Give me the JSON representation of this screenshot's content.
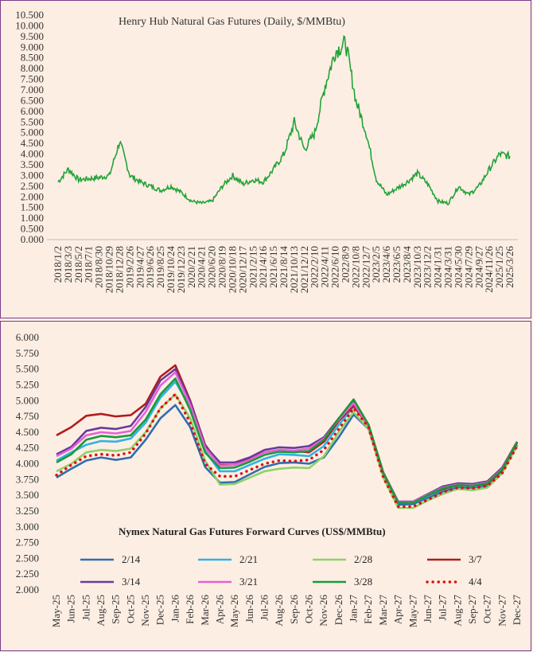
{
  "chart_data": [
    {
      "type": "line",
      "title": "Henry Hub Natural Gas Futures (Daily,  $/MMBtu)",
      "ylim": [
        0,
        10.5
      ],
      "yticks": [
        "0.000",
        "0.500",
        "1.000",
        "1.500",
        "2.000",
        "2.500",
        "3.000",
        "3.500",
        "4.000",
        "4.500",
        "5.000",
        "5.500",
        "6.000",
        "6.500",
        "7.000",
        "7.500",
        "8.000",
        "8.500",
        "9.000",
        "9.500",
        "10.000",
        "10.500"
      ],
      "categories": [
        "2018/1/2",
        "2018/3/3",
        "2018/5/2",
        "2018/7/1",
        "2018/8/30",
        "2018/10/29",
        "2018/12/28",
        "2019/2/26",
        "2019/4/27",
        "2019/6/26",
        "2019/8/25",
        "2019/10/24",
        "2019/12/23",
        "2020/2/21",
        "2020/4/21",
        "2020/6/20",
        "2020/8/19",
        "2020/10/18",
        "2020/12/17",
        "2021/2/15",
        "2021/4/16",
        "2021/6/15",
        "2021/8/14",
        "2021/10/13",
        "2021/12/12",
        "2022/2/10",
        "2022/4/11",
        "2022/6/10",
        "2022/8/9",
        "2022/10/8",
        "2022/12/7",
        "2023/2/5",
        "2023/4/6",
        "2023/6/5",
        "2023/8/4",
        "2023/10/3",
        "2023/12/2",
        "2024/1/31",
        "2024/3/31",
        "2024/5/30",
        "2024/7/29",
        "2024/9/27",
        "2024/11/26",
        "2025/1/25",
        "2025/3/26"
      ],
      "series": [
        {
          "color": "#22a339",
          "values": [
            2.7,
            3.3,
            2.8,
            2.85,
            2.9,
            3.0,
            4.6,
            3.0,
            2.7,
            2.5,
            2.3,
            2.5,
            2.2,
            1.8,
            1.7,
            1.8,
            2.5,
            3.0,
            2.6,
            2.8,
            2.7,
            3.3,
            4.0,
            5.5,
            4.2,
            5.0,
            7.2,
            8.8,
            9.2,
            6.5,
            5.0,
            2.8,
            2.1,
            2.4,
            2.7,
            3.1,
            2.6,
            1.8,
            1.7,
            2.5,
            2.1,
            2.5,
            3.3,
            4.0,
            3.9
          ]
        }
      ]
    },
    {
      "type": "line",
      "title": "Nymex  Natural Gas Futures Forward  Curves (US$/MMBtu)",
      "ylim": [
        2.0,
        6.0
      ],
      "yticks": [
        "2.000",
        "2.250",
        "2.500",
        "2.750",
        "3.000",
        "3.250",
        "3.500",
        "3.750",
        "4.000",
        "4.250",
        "4.500",
        "4.750",
        "5.000",
        "5.250",
        "5.500",
        "5.750",
        "6.000"
      ],
      "categories": [
        "May-25",
        "Jun-25",
        "Jul-25",
        "Aug-25",
        "Sep-25",
        "Oct-25",
        "Nov-25",
        "Dec-25",
        "Jan-26",
        "Feb-26",
        "Mar-26",
        "Apr-26",
        "May-26",
        "Jun-26",
        "Jul-26",
        "Aug-26",
        "Sep-26",
        "Oct-26",
        "Nov-26",
        "Dec-26",
        "Jan-27",
        "Feb-27",
        "Mar-27",
        "Apr-27",
        "May-27",
        "Jun-27",
        "Jul-27",
        "Aug-27",
        "Sep-27",
        "Oct-27",
        "Nov-27",
        "Dec-27"
      ],
      "series": [
        {
          "name": "2/14",
          "color": "#2e6fb0",
          "values": [
            3.78,
            3.92,
            4.05,
            4.1,
            4.06,
            4.1,
            4.38,
            4.72,
            4.93,
            4.58,
            3.95,
            3.7,
            3.71,
            3.83,
            3.95,
            4.01,
            4.02,
            4.0,
            4.1,
            4.42,
            4.78,
            4.55,
            3.8,
            3.35,
            3.36,
            3.46,
            3.56,
            3.62,
            3.62,
            3.65,
            3.86,
            4.3
          ]
        },
        {
          "name": "2/21",
          "color": "#2fb3e6",
          "values": [
            4.05,
            4.18,
            4.3,
            4.36,
            4.35,
            4.4,
            4.65,
            5.05,
            5.3,
            4.9,
            4.2,
            3.88,
            3.88,
            3.98,
            4.08,
            4.15,
            4.14,
            4.12,
            4.28,
            4.62,
            4.9,
            4.62,
            3.85,
            3.38,
            3.38,
            3.49,
            3.59,
            3.65,
            3.64,
            3.67,
            3.9,
            4.33
          ]
        },
        {
          "name": "2/28",
          "color": "#8fd16a",
          "values": [
            3.88,
            4.0,
            4.18,
            4.22,
            4.2,
            4.24,
            4.5,
            4.88,
            5.1,
            4.72,
            4.05,
            3.67,
            3.68,
            3.78,
            3.88,
            3.92,
            3.94,
            3.93,
            4.12,
            4.5,
            4.82,
            4.55,
            3.78,
            3.3,
            3.3,
            3.42,
            3.52,
            3.6,
            3.58,
            3.62,
            3.85,
            4.28
          ]
        },
        {
          "name": "3/7",
          "color": "#b01c1c",
          "values": [
            4.45,
            4.58,
            4.76,
            4.79,
            4.75,
            4.77,
            4.95,
            5.38,
            5.56,
            5.0,
            4.3,
            3.98,
            3.98,
            4.08,
            4.18,
            4.22,
            4.2,
            4.18,
            4.35,
            4.68,
            4.92,
            4.6,
            3.85,
            3.38,
            3.39,
            3.5,
            3.6,
            3.66,
            3.65,
            3.68,
            3.9,
            4.33
          ]
        },
        {
          "name": "3/14",
          "color": "#6a3a9c",
          "values": [
            4.15,
            4.27,
            4.52,
            4.57,
            4.55,
            4.6,
            4.9,
            5.32,
            5.5,
            4.98,
            4.28,
            4.02,
            4.02,
            4.1,
            4.22,
            4.26,
            4.25,
            4.28,
            4.42,
            4.72,
            4.98,
            4.62,
            3.86,
            3.4,
            3.4,
            3.52,
            3.64,
            3.69,
            3.68,
            3.72,
            3.94,
            4.35
          ]
        },
        {
          "name": "3/21",
          "color": "#e860d8",
          "values": [
            4.12,
            4.24,
            4.45,
            4.5,
            4.48,
            4.52,
            4.82,
            5.24,
            5.45,
            4.93,
            4.25,
            3.97,
            3.98,
            4.06,
            4.18,
            4.22,
            4.21,
            4.24,
            4.4,
            4.7,
            4.96,
            4.6,
            3.85,
            3.39,
            3.39,
            3.51,
            3.62,
            3.67,
            3.66,
            3.7,
            3.92,
            4.34
          ]
        },
        {
          "name": "3/28",
          "color": "#1a9a3a",
          "values": [
            4.02,
            4.15,
            4.38,
            4.44,
            4.42,
            4.45,
            4.7,
            5.1,
            5.35,
            4.85,
            4.18,
            3.93,
            3.94,
            4.03,
            4.14,
            4.19,
            4.18,
            4.2,
            4.38,
            4.72,
            5.02,
            4.62,
            3.85,
            3.38,
            3.38,
            3.5,
            3.61,
            3.66,
            3.65,
            3.69,
            3.91,
            4.34
          ]
        },
        {
          "name": "4/4",
          "color": "#e01010",
          "dotted": true,
          "values": [
            3.82,
            3.98,
            4.12,
            4.15,
            4.13,
            4.18,
            4.48,
            4.88,
            5.1,
            4.65,
            4.0,
            3.8,
            3.8,
            3.9,
            4.0,
            4.05,
            4.04,
            4.06,
            4.22,
            4.55,
            4.88,
            4.58,
            3.78,
            3.32,
            3.32,
            3.43,
            3.55,
            3.62,
            3.61,
            3.65,
            3.85,
            4.28
          ]
        }
      ]
    }
  ]
}
